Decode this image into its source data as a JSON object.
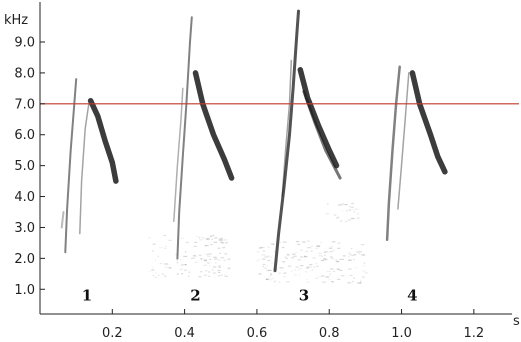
{
  "chart_data": {
    "type": "spectrogram",
    "y_unit": "kHz",
    "x_unit": "s",
    "xlim": [
      0.0,
      1.3
    ],
    "ylim": [
      0.2,
      10.1
    ],
    "x_ticks": [
      {
        "value": 0.2,
        "label": "0.2"
      },
      {
        "value": 0.4,
        "label": "0.4"
      },
      {
        "value": 0.6,
        "label": "0.6"
      },
      {
        "value": 0.8,
        "label": "0.8"
      },
      {
        "value": 1.0,
        "label": "1.0"
      },
      {
        "value": 1.2,
        "label": "1.2"
      }
    ],
    "y_ticks": [
      {
        "value": 1.0,
        "label": "1.0"
      },
      {
        "value": 2.0,
        "label": "2.0"
      },
      {
        "value": 3.0,
        "label": "3.0"
      },
      {
        "value": 4.0,
        "label": "4.0"
      },
      {
        "value": 5.0,
        "label": "5.0"
      },
      {
        "value": 6.0,
        "label": "6.0"
      },
      {
        "value": 7.0,
        "label": "7.0"
      },
      {
        "value": 8.0,
        "label": "8.0"
      },
      {
        "value": 9.0,
        "label": "9.0"
      }
    ],
    "reference_line": {
      "y": 7.0,
      "color": "#c0392b"
    },
    "syllables": [
      {
        "label": "1",
        "label_x": 0.13,
        "label_y": 0.8,
        "traces": [
          {
            "points": [
              [
                0.07,
                2.2
              ],
              [
                0.075,
                3.6
              ],
              [
                0.085,
                5.5
              ],
              [
                0.095,
                7.0
              ],
              [
                0.1,
                7.8
              ]
            ],
            "width": 2.0,
            "opacity": 0.55
          },
          {
            "points": [
              [
                0.11,
                2.8
              ],
              [
                0.115,
                4.5
              ],
              [
                0.125,
                6.2
              ],
              [
                0.135,
                7.0
              ]
            ],
            "width": 1.5,
            "opacity": 0.4
          },
          {
            "points": [
              [
                0.14,
                7.1
              ],
              [
                0.16,
                6.6
              ],
              [
                0.18,
                5.8
              ],
              [
                0.2,
                5.1
              ],
              [
                0.21,
                4.5
              ]
            ],
            "width": 5.5,
            "opacity": 0.85
          },
          {
            "points": [
              [
                0.06,
                3.0
              ],
              [
                0.065,
                3.5
              ]
            ],
            "width": 2.0,
            "opacity": 0.3
          }
        ]
      },
      {
        "label": "2",
        "label_x": 0.43,
        "label_y": 0.8,
        "traces": [
          {
            "points": [
              [
                0.38,
                2.0
              ],
              [
                0.385,
                3.5
              ],
              [
                0.395,
                5.3
              ],
              [
                0.405,
                7.0
              ],
              [
                0.415,
                9.0
              ],
              [
                0.42,
                9.8
              ]
            ],
            "width": 2.0,
            "opacity": 0.55
          },
          {
            "points": [
              [
                0.37,
                3.2
              ],
              [
                0.38,
                5.0
              ],
              [
                0.39,
                6.5
              ],
              [
                0.395,
                7.5
              ]
            ],
            "width": 1.5,
            "opacity": 0.35
          },
          {
            "points": [
              [
                0.43,
                8.0
              ],
              [
                0.45,
                7.0
              ],
              [
                0.48,
                6.0
              ],
              [
                0.51,
                5.2
              ],
              [
                0.53,
                4.6
              ]
            ],
            "width": 5.5,
            "opacity": 0.85
          }
        ]
      },
      {
        "label": "3",
        "label_x": 0.73,
        "label_y": 0.8,
        "traces": [
          {
            "points": [
              [
                0.65,
                1.6
              ],
              [
                0.66,
                2.8
              ],
              [
                0.675,
                4.3
              ],
              [
                0.69,
                6.0
              ],
              [
                0.7,
                7.5
              ],
              [
                0.71,
                9.2
              ],
              [
                0.715,
                10.0
              ]
            ],
            "width": 3.0,
            "opacity": 0.75
          },
          {
            "points": [
              [
                0.67,
                4.0
              ],
              [
                0.68,
                5.6
              ],
              [
                0.69,
                7.0
              ],
              [
                0.695,
                8.4
              ]
            ],
            "width": 1.5,
            "opacity": 0.4
          },
          {
            "points": [
              [
                0.72,
                8.1
              ],
              [
                0.74,
                7.2
              ],
              [
                0.77,
                6.3
              ],
              [
                0.8,
                5.5
              ],
              [
                0.82,
                5.0
              ]
            ],
            "width": 5.5,
            "opacity": 0.85
          },
          {
            "points": [
              [
                0.73,
                7.4
              ],
              [
                0.76,
                6.4
              ],
              [
                0.79,
                5.5
              ],
              [
                0.83,
                4.6
              ]
            ],
            "width": 3.0,
            "opacity": 0.6
          }
        ]
      },
      {
        "label": "4",
        "label_x": 1.03,
        "label_y": 0.8,
        "traces": [
          {
            "points": [
              [
                0.96,
                2.6
              ],
              [
                0.965,
                3.8
              ],
              [
                0.975,
                5.5
              ],
              [
                0.985,
                7.0
              ],
              [
                0.995,
                8.2
              ]
            ],
            "width": 2.5,
            "opacity": 0.55
          },
          {
            "points": [
              [
                0.99,
                3.6
              ],
              [
                1.0,
                5.0
              ],
              [
                1.01,
                6.5
              ],
              [
                1.02,
                8.0
              ]
            ],
            "width": 1.5,
            "opacity": 0.4
          },
          {
            "points": [
              [
                1.03,
                8.0
              ],
              [
                1.05,
                7.0
              ],
              [
                1.08,
                6.0
              ],
              [
                1.1,
                5.3
              ],
              [
                1.12,
                4.8
              ]
            ],
            "width": 5.5,
            "opacity": 0.85
          }
        ]
      }
    ],
    "noise_patches": [
      {
        "x0": 0.3,
        "x1": 0.52,
        "y0": 1.4,
        "y1": 2.8,
        "count": 120
      },
      {
        "x0": 0.6,
        "x1": 0.9,
        "y0": 1.2,
        "y1": 2.6,
        "count": 170
      },
      {
        "x0": 0.78,
        "x1": 0.88,
        "y0": 3.2,
        "y1": 3.8,
        "count": 25
      }
    ]
  }
}
